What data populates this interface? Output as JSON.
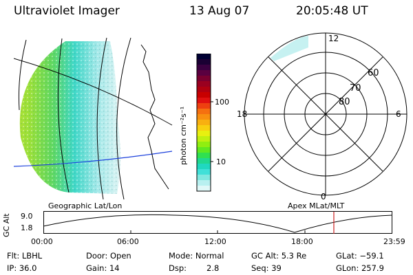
{
  "header": {
    "instrument": "Ultraviolet Imager",
    "date": "13 Aug 07",
    "time": "20:05:48 UT"
  },
  "colorbar": {
    "unit_label": "photon cm⁻²s⁻¹",
    "tick_labels": [
      "100",
      "10"
    ],
    "colors": [
      "#000033",
      "#1a0033",
      "#3a0040",
      "#5a0040",
      "#7a0030",
      "#9a0020",
      "#b00010",
      "#c80000",
      "#e01010",
      "#ee4010",
      "#f57010",
      "#f89010",
      "#f8b010",
      "#f8d010",
      "#e8f010",
      "#c0f010",
      "#90ee10",
      "#60e820",
      "#30e050",
      "#20d890",
      "#20d8c0",
      "#40e0d8",
      "#80e8e0",
      "#b8f0f0",
      "#e0f8f8"
    ]
  },
  "geo_panel": {
    "label": "Geographic Lat/Lon"
  },
  "polar_panel": {
    "label": "Apex MLat/MLT",
    "mlt_labels": {
      "top": "12",
      "left": "18",
      "right": "6",
      "bottom": "0"
    },
    "mlat_labels": [
      "60",
      "70",
      "80"
    ]
  },
  "altitude_plot": {
    "ylabel": "GC Alt",
    "yticks": [
      "9.0",
      "1.8"
    ],
    "xticks": [
      "00:00",
      "06:00",
      "12:00",
      "18:00",
      "23:59"
    ],
    "marker_color": "#cc2222"
  },
  "info": {
    "flt": "Flt: LBHL",
    "door": "Door: Open",
    "mode": "Mode: Normal",
    "gc_alt": "GC Alt: 5.3 Re",
    "glat": "GLat: −59.1",
    "ip": "IP: 36.0",
    "gain": "Gain: 14",
    "dsp_label": "Dsp:",
    "dsp_value": "2.8",
    "seq": "Seq: 39",
    "glon": "GLon: 257.9"
  }
}
